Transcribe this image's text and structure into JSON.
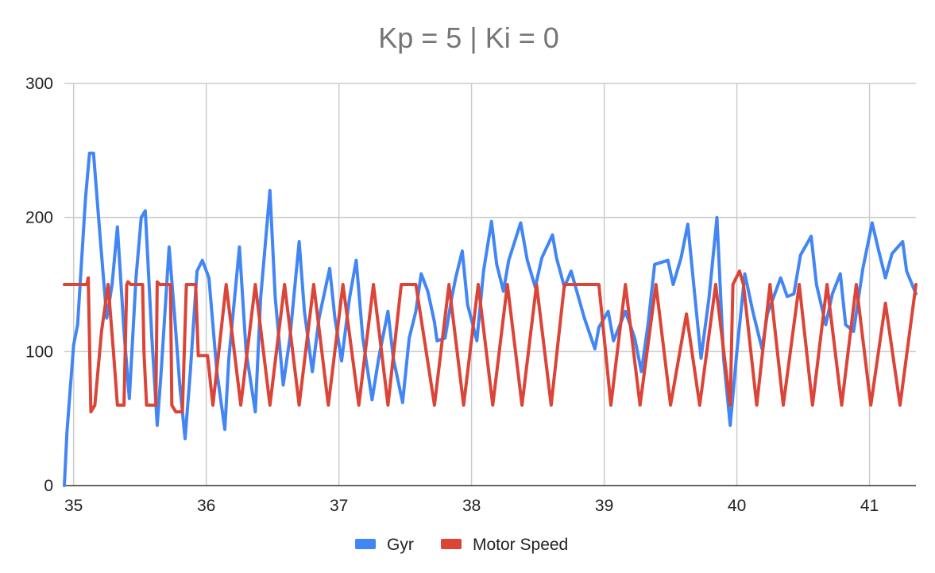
{
  "chart_data": {
    "type": "line",
    "title": "Kp = 5 |  Ki = 0",
    "xlabel": "",
    "ylabel": "",
    "xlim": [
      34.93,
      41.35
    ],
    "ylim": [
      0,
      300
    ],
    "xticks": [
      35,
      36,
      37,
      38,
      39,
      40,
      41
    ],
    "yticks": [
      0,
      100,
      200,
      300
    ],
    "grid": true,
    "legend_position": "bottom",
    "series": [
      {
        "name": "Gyr",
        "color": "#4285f4",
        "points": [
          [
            34.93,
            0
          ],
          [
            34.95,
            40
          ],
          [
            35.0,
            105
          ],
          [
            35.03,
            120
          ],
          [
            35.09,
            215
          ],
          [
            35.12,
            248
          ],
          [
            35.15,
            248
          ],
          [
            35.2,
            185
          ],
          [
            35.25,
            125
          ],
          [
            35.29,
            150
          ],
          [
            35.33,
            193
          ],
          [
            35.38,
            115
          ],
          [
            35.42,
            65
          ],
          [
            35.47,
            155
          ],
          [
            35.51,
            200
          ],
          [
            35.54,
            205
          ],
          [
            35.59,
            110
          ],
          [
            35.63,
            45
          ],
          [
            35.66,
            85
          ],
          [
            35.72,
            178
          ],
          [
            35.76,
            128
          ],
          [
            35.8,
            75
          ],
          [
            35.84,
            35
          ],
          [
            35.88,
            85
          ],
          [
            35.93,
            160
          ],
          [
            35.97,
            168
          ],
          [
            36.02,
            155
          ],
          [
            36.08,
            85
          ],
          [
            36.14,
            42
          ],
          [
            36.17,
            95
          ],
          [
            36.25,
            178
          ],
          [
            36.3,
            100
          ],
          [
            36.37,
            55
          ],
          [
            36.41,
            140
          ],
          [
            36.48,
            220
          ],
          [
            36.52,
            140
          ],
          [
            36.58,
            75
          ],
          [
            36.63,
            110
          ],
          [
            36.7,
            182
          ],
          [
            36.74,
            130
          ],
          [
            36.8,
            85
          ],
          [
            36.85,
            125
          ],
          [
            36.93,
            162
          ],
          [
            36.97,
            125
          ],
          [
            37.02,
            93
          ],
          [
            37.08,
            140
          ],
          [
            37.13,
            168
          ],
          [
            37.18,
            110
          ],
          [
            37.25,
            64
          ],
          [
            37.3,
            95
          ],
          [
            37.37,
            130
          ],
          [
            37.41,
            95
          ],
          [
            37.48,
            62
          ],
          [
            37.53,
            110
          ],
          [
            37.58,
            130
          ],
          [
            37.62,
            158
          ],
          [
            37.67,
            145
          ],
          [
            37.72,
            122
          ],
          [
            37.74,
            108
          ],
          [
            37.8,
            110
          ],
          [
            37.85,
            140
          ],
          [
            37.88,
            155
          ],
          [
            37.93,
            175
          ],
          [
            37.97,
            135
          ],
          [
            38.04,
            108
          ],
          [
            38.09,
            160
          ],
          [
            38.15,
            197
          ],
          [
            38.19,
            165
          ],
          [
            38.24,
            145
          ],
          [
            38.28,
            168
          ],
          [
            38.37,
            196
          ],
          [
            38.42,
            168
          ],
          [
            38.48,
            148
          ],
          [
            38.53,
            170
          ],
          [
            38.61,
            187
          ],
          [
            38.64,
            170
          ],
          [
            38.7,
            148
          ],
          [
            38.75,
            160
          ],
          [
            38.85,
            125
          ],
          [
            38.93,
            102
          ],
          [
            38.96,
            118
          ],
          [
            39.03,
            130
          ],
          [
            39.07,
            108
          ],
          [
            39.16,
            130
          ],
          [
            39.23,
            110
          ],
          [
            39.28,
            85
          ],
          [
            39.33,
            120
          ],
          [
            39.38,
            165
          ],
          [
            39.48,
            168
          ],
          [
            39.52,
            150
          ],
          [
            39.58,
            170
          ],
          [
            39.63,
            195
          ],
          [
            39.68,
            145
          ],
          [
            39.73,
            95
          ],
          [
            39.79,
            140
          ],
          [
            39.85,
            200
          ],
          [
            39.9,
            95
          ],
          [
            39.95,
            45
          ],
          [
            40.0,
            100
          ],
          [
            40.06,
            158
          ],
          [
            40.12,
            130
          ],
          [
            40.19,
            102
          ],
          [
            40.23,
            128
          ],
          [
            40.33,
            155
          ],
          [
            40.38,
            141
          ],
          [
            40.43,
            143
          ],
          [
            40.48,
            172
          ],
          [
            40.56,
            186
          ],
          [
            40.6,
            150
          ],
          [
            40.67,
            120
          ],
          [
            40.72,
            143
          ],
          [
            40.78,
            158
          ],
          [
            40.82,
            120
          ],
          [
            40.88,
            115
          ],
          [
            40.95,
            162
          ],
          [
            41.02,
            196
          ],
          [
            41.07,
            175
          ],
          [
            41.12,
            155
          ],
          [
            41.17,
            173
          ],
          [
            41.25,
            182
          ],
          [
            41.28,
            160
          ],
          [
            41.35,
            143
          ]
        ]
      },
      {
        "name": "Motor Speed",
        "color": "#db4437",
        "points": [
          [
            34.93,
            150
          ],
          [
            35.1,
            150
          ],
          [
            35.11,
            155
          ],
          [
            35.13,
            55
          ],
          [
            35.16,
            60
          ],
          [
            35.21,
            115
          ],
          [
            35.26,
            150
          ],
          [
            35.3,
            100
          ],
          [
            35.33,
            60
          ],
          [
            35.38,
            60
          ],
          [
            35.4,
            150
          ],
          [
            35.41,
            152
          ],
          [
            35.43,
            150
          ],
          [
            35.52,
            150
          ],
          [
            35.53,
            100
          ],
          [
            35.55,
            60
          ],
          [
            35.62,
            60
          ],
          [
            35.63,
            152
          ],
          [
            35.65,
            150
          ],
          [
            35.73,
            150
          ],
          [
            35.74,
            60
          ],
          [
            35.77,
            55
          ],
          [
            35.82,
            55
          ],
          [
            35.85,
            150
          ],
          [
            35.88,
            150
          ],
          [
            35.92,
            150
          ],
          [
            35.94,
            97
          ],
          [
            36.01,
            97
          ],
          [
            36.05,
            60
          ],
          [
            36.15,
            150
          ],
          [
            36.26,
            60
          ],
          [
            36.37,
            150
          ],
          [
            36.48,
            60
          ],
          [
            36.59,
            150
          ],
          [
            36.7,
            60
          ],
          [
            36.81,
            150
          ],
          [
            36.92,
            60
          ],
          [
            37.03,
            150
          ],
          [
            37.15,
            60
          ],
          [
            37.26,
            150
          ],
          [
            37.37,
            60
          ],
          [
            37.47,
            150
          ],
          [
            37.58,
            150
          ],
          [
            37.72,
            60
          ],
          [
            37.83,
            150
          ],
          [
            37.94,
            60
          ],
          [
            38.05,
            150
          ],
          [
            38.16,
            60
          ],
          [
            38.27,
            150
          ],
          [
            38.38,
            60
          ],
          [
            38.49,
            150
          ],
          [
            38.6,
            60
          ],
          [
            38.7,
            150
          ],
          [
            38.96,
            150
          ],
          [
            39.05,
            60
          ],
          [
            39.16,
            150
          ],
          [
            39.27,
            60
          ],
          [
            39.39,
            150
          ],
          [
            39.5,
            60
          ],
          [
            39.62,
            128
          ],
          [
            39.72,
            60
          ],
          [
            39.84,
            150
          ],
          [
            39.95,
            60
          ],
          [
            39.97,
            150
          ],
          [
            40.02,
            160
          ],
          [
            40.05,
            150
          ],
          [
            40.15,
            60
          ],
          [
            40.25,
            150
          ],
          [
            40.35,
            60
          ],
          [
            40.47,
            150
          ],
          [
            40.57,
            60
          ],
          [
            40.68,
            150
          ],
          [
            40.79,
            60
          ],
          [
            40.9,
            150
          ],
          [
            41.01,
            60
          ],
          [
            41.12,
            136
          ],
          [
            41.23,
            60
          ],
          [
            41.35,
            150
          ]
        ]
      }
    ]
  }
}
